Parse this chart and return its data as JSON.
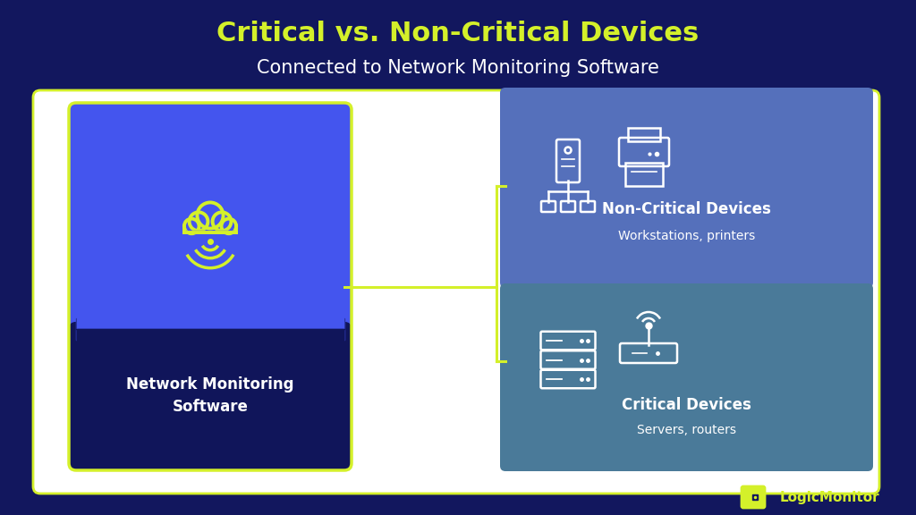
{
  "bg_color": "#12175e",
  "title_line1": "Critical vs. Non-Critical Devices",
  "title_line2": "Connected to Network Monitoring Software",
  "title_color": "#d4f02a",
  "subtitle_color": "#ffffff",
  "outer_box_facecolor": "#ffffff",
  "outer_box_edgecolor": "#d4f02a",
  "left_box_border_color": "#d4f02a",
  "left_box_top_color": "#4455ee",
  "left_box_bottom_color": "#10155a",
  "left_box_label": "Network Monitoring\nSoftware",
  "right_top_color": "#5570bb",
  "right_bot_color": "#4a7a99",
  "right_top_label": "Non-Critical Devices",
  "right_top_sublabel": "Workstations, printers",
  "right_bottom_label": "Critical Devices",
  "right_bottom_sublabel": "Servers, routers",
  "connector_color": "#d4f02a",
  "icon_color": "#ffffff",
  "cloud_color": "#d4f02a",
  "logo_color": "#d4f02a",
  "logo_text": "LogicMonitor"
}
